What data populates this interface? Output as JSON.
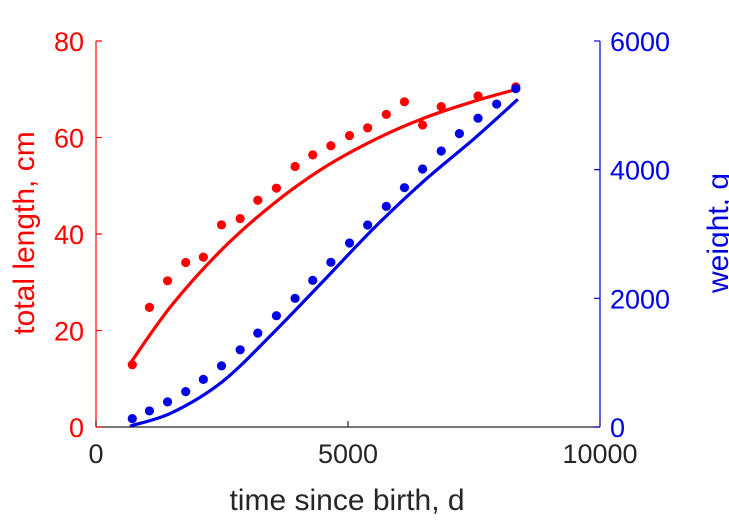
{
  "chart_data": {
    "type": "scatter",
    "xlabel": "time since birth, d",
    "ylabel_left": "total length, cm",
    "ylabel_right": "weight, g",
    "xlim": [
      0,
      10000
    ],
    "ylim_left": [
      0,
      80
    ],
    "ylim_right": [
      0,
      6000
    ],
    "xticks": [
      0,
      5000,
      10000
    ],
    "yticks_left": [
      0,
      20,
      40,
      60,
      80
    ],
    "yticks_right": [
      0,
      2000,
      4000,
      6000
    ],
    "grid": false,
    "colors": {
      "length": "#ff0000",
      "weight": "#0000e6",
      "axis_x": "#262626"
    },
    "series": [
      {
        "axis": "left",
        "kind": "points",
        "color": "#ff0000",
        "x": [
          720,
          1060,
          1420,
          1780,
          2130,
          2490,
          2860,
          3210,
          3580,
          3950,
          4300,
          4660,
          5030,
          5390,
          5760,
          6120,
          6480,
          6850,
          7580,
          8330
        ],
        "y": [
          12.9,
          24.8,
          30.3,
          34.1,
          35.2,
          41.9,
          43.2,
          47.0,
          49.5,
          54.0,
          56.4,
          58.3,
          60.4,
          62.0,
          64.8,
          67.4,
          62.6,
          66.4,
          68.6,
          70.5
        ]
      },
      {
        "axis": "left",
        "kind": "line",
        "color": "#ff0000",
        "x": [
          700,
          1500,
          2500,
          3500,
          4500,
          5500,
          6500,
          7500,
          8350
        ],
        "y": [
          13.5,
          25.2,
          36.8,
          46.1,
          53.6,
          59.4,
          64.0,
          67.5,
          70.0
        ]
      },
      {
        "axis": "right",
        "kind": "points",
        "color": "#0000e6",
        "x": [
          720,
          1060,
          1420,
          1780,
          2130,
          2490,
          2860,
          3210,
          3580,
          3950,
          4300,
          4660,
          5030,
          5390,
          5760,
          6120,
          6480,
          6850,
          7210,
          7580,
          7950,
          8330
        ],
        "y": [
          130,
          250,
          390,
          550,
          740,
          950,
          1200,
          1460,
          1730,
          2000,
          2280,
          2560,
          2860,
          3140,
          3430,
          3720,
          4010,
          4290,
          4560,
          4800,
          5020,
          5260
        ]
      },
      {
        "axis": "right",
        "kind": "line",
        "color": "#0000e6",
        "x": [
          700,
          1500,
          2500,
          3500,
          4500,
          5500,
          6500,
          7500,
          8350
        ],
        "y": [
          20,
          220,
          700,
          1450,
          2260,
          3080,
          3820,
          4480,
          5080
        ]
      }
    ]
  }
}
